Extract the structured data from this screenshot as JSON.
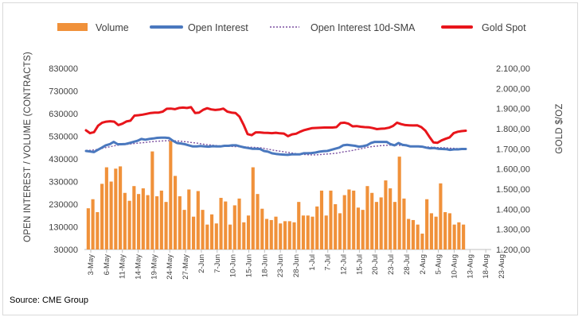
{
  "chart_data": {
    "type": "bar+line",
    "source": "Source: CME Group",
    "colors": {
      "volume": "#F0913A",
      "open_interest": "#4A78BE",
      "sma": "#7A4FA0",
      "gold": "#E8151B"
    },
    "legend": {
      "volume": "Volume",
      "open_interest": "Open Interest",
      "sma": "Open Interest 10d-SMA",
      "gold": "Gold Spot"
    },
    "y_left": {
      "label": "OPEN INTEREST / VOLUME (CONTRACTS)",
      "ticks": [
        "30000",
        "130000",
        "230000",
        "330000",
        "430000",
        "530000",
        "630000",
        "730000",
        "830000"
      ],
      "min": 30000,
      "max": 830000
    },
    "y_right": {
      "label": "GOLD $/OZ",
      "ticks": [
        "1.200,00",
        "1.300,00",
        "1.400,00",
        "1.500,00",
        "1.600,00",
        "1.700,00",
        "1.800,00",
        "1.900,00",
        "2.000,00",
        "2.100,00"
      ],
      "min": 1200,
      "max": 2100
    },
    "x_ticks": [
      "3-May",
      "6-May",
      "11-May",
      "14-May",
      "19-May",
      "24-May",
      "27-May",
      "2-Jun",
      "7-Jun",
      "10-Jun",
      "15-Jun",
      "18-Jun",
      "23-Jun",
      "28-Jun",
      "1-Jul",
      "7-Jul",
      "12-Jul",
      "15-Jul",
      "20-Jul",
      "23-Jul",
      "28-Jul",
      "2-Aug",
      "5-Aug",
      "10-Aug",
      "13-Aug",
      "18-Aug",
      "23-Aug"
    ],
    "volume": [
      212000,
      252000,
      195000,
      320000,
      393000,
      330000,
      387000,
      397000,
      280000,
      245000,
      310000,
      275000,
      300000,
      270000,
      463000,
      265000,
      290000,
      240000,
      510000,
      355000,
      265000,
      205000,
      295000,
      175000,
      288000,
      205000,
      140000,
      185000,
      145000,
      258000,
      242000,
      140000,
      225000,
      255000,
      150000,
      180000,
      393000,
      275000,
      210000,
      165000,
      160000,
      175000,
      145000,
      155000,
      155000,
      150000,
      240000,
      180000,
      180000,
      175000,
      220000,
      290000,
      180000,
      290000,
      230000,
      190000,
      270000,
      295000,
      290000,
      215000,
      205000,
      310000,
      280000,
      240000,
      260000,
      335000,
      300000,
      240000,
      440000,
      255000,
      165000,
      160000,
      140000,
      100000,
      252000,
      190000,
      175000,
      322000,
      195000,
      190000,
      140000,
      150000,
      140000
    ],
    "open_interest": [
      465000,
      463000,
      460000,
      470000,
      480000,
      490000,
      495000,
      505000,
      495000,
      495000,
      496000,
      500000,
      505000,
      510000,
      518000,
      515000,
      518000,
      520000,
      523000,
      524000,
      524000,
      522000,
      510000,
      500000,
      498000,
      495000,
      490000,
      485000,
      485000,
      487000,
      485000,
      484000,
      486000,
      485000,
      485000,
      488000,
      488000,
      490000,
      490000,
      485000,
      481000,
      478000,
      475000,
      475000,
      474000,
      465000,
      462000,
      455000,
      452000,
      450000,
      449000,
      448000,
      450000,
      450000,
      450000,
      455000,
      455000,
      456000,
      458000,
      462000,
      464000,
      465000,
      470000,
      475000,
      480000,
      490000,
      492000,
      490000,
      488000,
      484000,
      486000,
      490000,
      500000,
      505000,
      505000,
      505000,
      505000,
      495000,
      490000,
      500000,
      492000,
      490000,
      485000,
      485000,
      485000,
      484000,
      480000,
      477000,
      478000,
      475000,
      474000,
      473000,
      470000,
      472000,
      472000,
      474000,
      474000
    ],
    "oi_10d_sma": [
      468000,
      468000,
      470000,
      474000,
      478000,
      482000,
      486000,
      490000,
      492000,
      494000,
      496000,
      498000,
      500000,
      502000,
      504000,
      506000,
      508000,
      509000,
      510000,
      511000,
      510000,
      509000,
      507000,
      505000,
      502000,
      500000,
      497000,
      494000,
      492000,
      490000,
      488000,
      487000,
      486000,
      485000,
      484000,
      484000,
      483000,
      482000,
      481000,
      480000,
      478000,
      474000,
      470000,
      467000,
      464000,
      461000,
      458000,
      455000,
      452000,
      450000,
      449000,
      448000,
      448000,
      449000,
      451000,
      452000,
      454000,
      456000,
      460000,
      463000,
      466000,
      470000,
      474000,
      478000,
      482000,
      485000,
      487000,
      489000,
      490000,
      491000,
      491000,
      490000,
      489000,
      488000,
      486000,
      485000,
      484000,
      483000,
      482000,
      481000,
      480000,
      479000,
      478000,
      477000,
      476000,
      475000,
      474000
    ],
    "gold_spot": [
      1792,
      1778,
      1783,
      1815,
      1830,
      1835,
      1837,
      1835,
      1818,
      1825,
      1836,
      1840,
      1865,
      1867,
      1870,
      1874,
      1878,
      1880,
      1880,
      1885,
      1899,
      1900,
      1897,
      1903,
      1905,
      1903,
      1907,
      1878,
      1880,
      1894,
      1902,
      1896,
      1893,
      1895,
      1900,
      1885,
      1880,
      1878,
      1860,
      1820,
      1773,
      1768,
      1782,
      1782,
      1780,
      1779,
      1778,
      1780,
      1777,
      1776,
      1763,
      1772,
      1775,
      1785,
      1793,
      1798,
      1803,
      1804,
      1805,
      1806,
      1806,
      1806,
      1808,
      1828,
      1830,
      1825,
      1812,
      1813,
      1810,
      1808,
      1807,
      1803,
      1798,
      1800,
      1801,
      1805,
      1814,
      1830,
      1823,
      1818,
      1817,
      1816,
      1817,
      1808,
      1790,
      1760,
      1732,
      1730,
      1742,
      1750,
      1757,
      1778,
      1785,
      1788,
      1790
    ]
  }
}
